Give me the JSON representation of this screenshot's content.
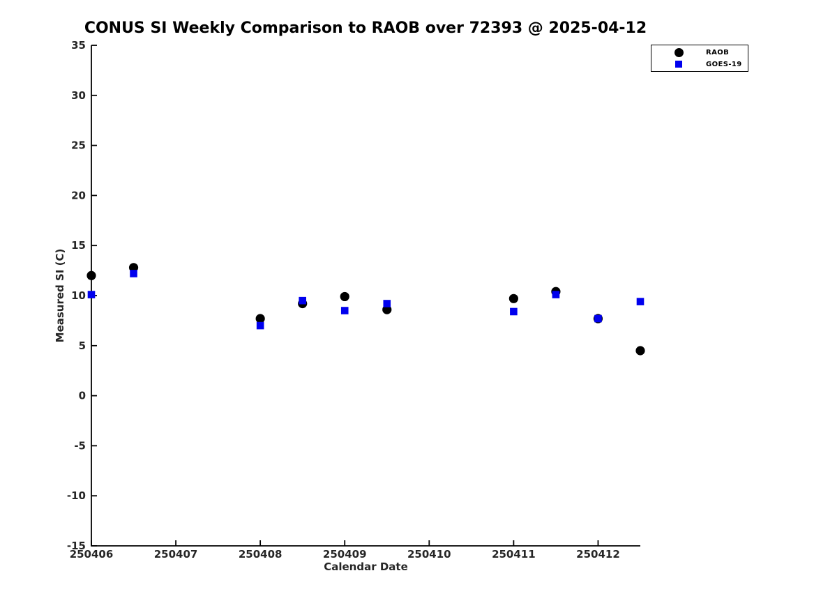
{
  "chart_data": {
    "type": "scatter",
    "title": "CONUS SI Weekly Comparison to RAOB over 72393 @ 2025-04-12",
    "xlabel": "Calendar Date",
    "ylabel": "Measured SI (C)",
    "xlim": [
      250406,
      250412.5
    ],
    "ylim": [
      -15,
      35
    ],
    "x_ticks": [
      250406,
      250407,
      250408,
      250409,
      250410,
      250411,
      250412
    ],
    "y_ticks": [
      -15,
      -10,
      -5,
      0,
      5,
      10,
      15,
      20,
      25,
      30,
      35
    ],
    "grid": false,
    "legend_position": "top-right",
    "axis_color": "#000000",
    "series": [
      {
        "name": "RAOB",
        "marker": "circle",
        "color": "#000000",
        "x": [
          250406,
          250406.5,
          250408,
          250408.5,
          250409,
          250409.5,
          250411,
          250411.5,
          250412,
          250412.5
        ],
        "y": [
          12.0,
          12.8,
          7.7,
          9.2,
          9.9,
          8.6,
          9.7,
          10.4,
          7.7,
          4.5
        ]
      },
      {
        "name": "GOES-19",
        "marker": "square",
        "color": "#0000EE",
        "x": [
          250406,
          250406.5,
          250408,
          250408.5,
          250409,
          250409.5,
          250411,
          250411.5,
          250412,
          250412.5
        ],
        "y": [
          10.1,
          12.2,
          7.0,
          9.5,
          8.5,
          9.2,
          8.4,
          10.1,
          7.7,
          9.4
        ]
      }
    ]
  }
}
